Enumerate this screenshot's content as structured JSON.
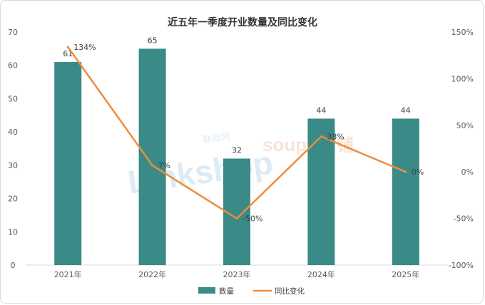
{
  "chart_data": {
    "type": "bar",
    "title": "近五年一季度开业数量及同比变化",
    "categories": [
      "2021年",
      "2022年",
      "2023年",
      "2024年",
      "2025年"
    ],
    "series": [
      {
        "name": "数量",
        "type": "bar",
        "axis": "left",
        "color": "#3a8a88",
        "values": [
          61,
          65,
          32,
          44,
          44
        ],
        "labels": [
          "61",
          "65",
          "32",
          "44",
          "44"
        ]
      },
      {
        "name": "同比变化",
        "type": "line",
        "axis": "right",
        "color": "#ed8d3c",
        "values": [
          134,
          7,
          -50,
          38,
          0
        ],
        "labels": [
          "134%",
          "7%",
          "-50%",
          "38%",
          "0%"
        ]
      }
    ],
    "y_left": {
      "min": 0,
      "max": 70,
      "ticks": [
        "0",
        "10",
        "20",
        "30",
        "40",
        "50",
        "60",
        "70"
      ]
    },
    "y_right": {
      "min": -100,
      "max": 150,
      "ticks": [
        "-100%",
        "-50%",
        "0%",
        "50%",
        "100%",
        "150%"
      ]
    },
    "grid": false,
    "legend_position": "bottom"
  },
  "watermarks": [
    "联商网",
    "soupu搜铺"
  ]
}
